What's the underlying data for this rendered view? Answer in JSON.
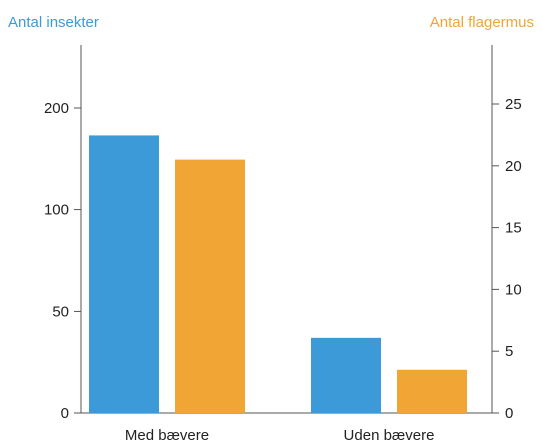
{
  "chart_data": {
    "type": "bar",
    "categories": [
      "Med bævere",
      "Uden bævere"
    ],
    "left_axis": {
      "label": "Antal insekter",
      "ticks": [
        0,
        50,
        100,
        200
      ],
      "tick_positions_fraction": [
        0,
        0.333,
        0.667,
        1.0
      ]
    },
    "right_axis": {
      "label": "Antal flagermus",
      "ticks": [
        0,
        5,
        10,
        15,
        20,
        25
      ],
      "ylim": [
        0,
        29
      ]
    },
    "series": [
      {
        "axis": "left",
        "values": [
          173,
          37
        ],
        "color": "#3d9ad9"
      },
      {
        "axis": "right",
        "values": [
          20.5,
          3.5
        ],
        "color": "#f1a535"
      }
    ],
    "legend": "none",
    "grid": false
  }
}
